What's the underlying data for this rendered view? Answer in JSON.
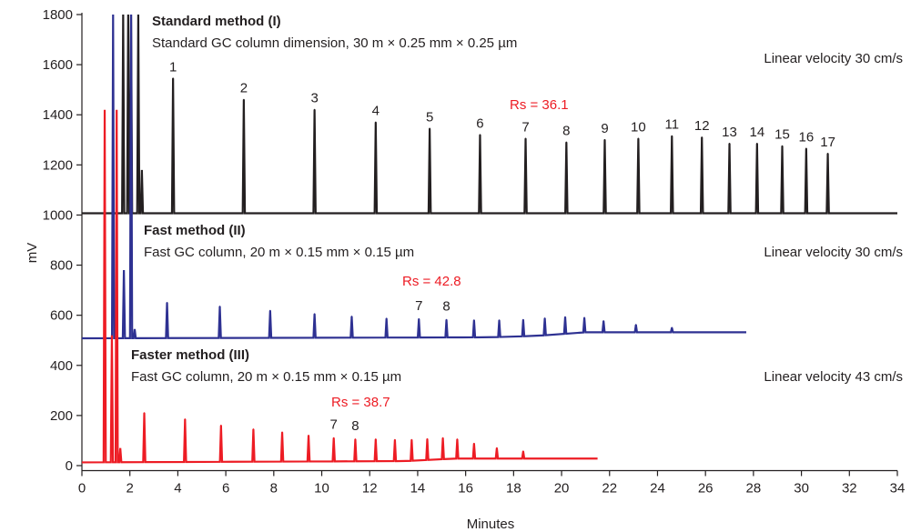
{
  "chart_data": {
    "type": "line",
    "xlabel": "Minutes",
    "ylabel": "mV",
    "xlim": [
      0,
      34
    ],
    "ylim": [
      -20,
      1800
    ],
    "xticks": [
      0,
      2,
      4,
      6,
      8,
      10,
      12,
      14,
      16,
      18,
      20,
      22,
      24,
      26,
      28,
      30,
      32,
      34
    ],
    "yticks": [
      0,
      200,
      400,
      600,
      800,
      1000,
      1200,
      1400,
      1600,
      1800
    ],
    "grid": false,
    "series": [
      {
        "key": "standard",
        "color": "#231f20",
        "baseline": 1007,
        "start": 0,
        "end": 34,
        "early_peaks": [
          {
            "x": 1.72,
            "y": 1800
          },
          {
            "x": 1.93,
            "y": 1800
          },
          {
            "x": 2.05,
            "y": 1800
          },
          {
            "x": 2.35,
            "y": 1800
          },
          {
            "x": 2.5,
            "y": 1180
          }
        ],
        "peaks": [
          {
            "x": 3.8,
            "y": 1545
          },
          {
            "x": 6.75,
            "y": 1460
          },
          {
            "x": 9.7,
            "y": 1420
          },
          {
            "x": 12.25,
            "y": 1370
          },
          {
            "x": 14.5,
            "y": 1345
          },
          {
            "x": 16.6,
            "y": 1320
          },
          {
            "x": 18.5,
            "y": 1305
          },
          {
            "x": 20.2,
            "y": 1290
          },
          {
            "x": 21.8,
            "y": 1300
          },
          {
            "x": 23.2,
            "y": 1305
          },
          {
            "x": 24.6,
            "y": 1315
          },
          {
            "x": 25.85,
            "y": 1310
          },
          {
            "x": 27.0,
            "y": 1285
          },
          {
            "x": 28.15,
            "y": 1285
          },
          {
            "x": 29.2,
            "y": 1275
          },
          {
            "x": 30.2,
            "y": 1265
          },
          {
            "x": 31.1,
            "y": 1245
          }
        ],
        "drift": [
          [
            0,
            1007
          ],
          [
            34,
            1007
          ]
        ]
      },
      {
        "key": "fast",
        "color": "#2e3192",
        "baseline": 508,
        "start": 0,
        "end": 27.7,
        "early_peaks": [
          {
            "x": 1.3,
            "y": 1800
          },
          {
            "x": 1.75,
            "y": 780
          },
          {
            "x": 2.05,
            "y": 1800
          },
          {
            "x": 2.2,
            "y": 545
          }
        ],
        "peaks": [
          {
            "x": 3.55,
            "y": 650
          },
          {
            "x": 5.75,
            "y": 635
          },
          {
            "x": 7.85,
            "y": 618
          },
          {
            "x": 9.7,
            "y": 605
          },
          {
            "x": 11.25,
            "y": 595
          },
          {
            "x": 12.7,
            "y": 587
          },
          {
            "x": 14.05,
            "y": 585
          },
          {
            "x": 15.2,
            "y": 582
          },
          {
            "x": 16.35,
            "y": 580
          },
          {
            "x": 17.4,
            "y": 580
          },
          {
            "x": 18.4,
            "y": 582
          },
          {
            "x": 19.3,
            "y": 588
          },
          {
            "x": 20.15,
            "y": 593
          },
          {
            "x": 20.95,
            "y": 590
          },
          {
            "x": 21.75,
            "y": 577
          },
          {
            "x": 23.1,
            "y": 562
          },
          {
            "x": 24.6,
            "y": 550
          }
        ],
        "drift": [
          [
            0,
            508
          ],
          [
            17,
            512
          ],
          [
            19,
            518
          ],
          [
            21,
            532
          ],
          [
            27.7,
            532
          ]
        ]
      },
      {
        "key": "faster",
        "color": "#ed1c24",
        "baseline": 13,
        "start": 0,
        "end": 21.5,
        "early_peaks": [
          {
            "x": 0.95,
            "y": 1420
          },
          {
            "x": 1.25,
            "y": 520
          },
          {
            "x": 1.45,
            "y": 1420
          },
          {
            "x": 1.6,
            "y": 70
          }
        ],
        "peaks": [
          {
            "x": 2.6,
            "y": 210
          },
          {
            "x": 4.3,
            "y": 185
          },
          {
            "x": 5.8,
            "y": 160
          },
          {
            "x": 7.15,
            "y": 145
          },
          {
            "x": 8.35,
            "y": 133
          },
          {
            "x": 9.45,
            "y": 120
          },
          {
            "x": 10.5,
            "y": 110
          },
          {
            "x": 11.4,
            "y": 105
          },
          {
            "x": 12.25,
            "y": 105
          },
          {
            "x": 13.05,
            "y": 103
          },
          {
            "x": 13.75,
            "y": 103
          },
          {
            "x": 14.4,
            "y": 106
          },
          {
            "x": 15.05,
            "y": 110
          },
          {
            "x": 15.65,
            "y": 105
          },
          {
            "x": 16.35,
            "y": 88
          },
          {
            "x": 17.3,
            "y": 70
          },
          {
            "x": 18.4,
            "y": 57
          }
        ],
        "drift": [
          [
            0,
            13
          ],
          [
            13.5,
            18
          ],
          [
            15.5,
            28
          ],
          [
            21.5,
            28
          ]
        ]
      }
    ],
    "annotations": {
      "standard": {
        "title": "Standard method (I)",
        "subtitle": "Standard GC column dimension, 30 m × 0.25 mm × 0.25 µm",
        "velocity": "Linear velocity 30 cm/s",
        "rs": "Rs = 36.1",
        "peak_labels": [
          "1",
          "2",
          "3",
          "4",
          "5",
          "6",
          "7",
          "8",
          "9",
          "10",
          "11",
          "12",
          "13",
          "14",
          "15",
          "16",
          "17"
        ]
      },
      "fast": {
        "title": "Fast method (II)",
        "subtitle": "Fast GC column, 20 m × 0.15 mm × 0.15 µm",
        "velocity": "Linear velocity 30 cm/s",
        "rs": "Rs = 42.8",
        "peak_labels": [
          "7",
          "8"
        ]
      },
      "faster": {
        "title": "Faster method (III)",
        "subtitle": "Fast GC column, 20 m × 0.15 mm × 0.15 µm",
        "velocity": "Linear velocity 43 cm/s",
        "rs": "Rs = 38.7",
        "peak_labels": [
          "7",
          "8"
        ]
      }
    },
    "label_color": "#231f20",
    "rs_color": "#ed1c24"
  }
}
